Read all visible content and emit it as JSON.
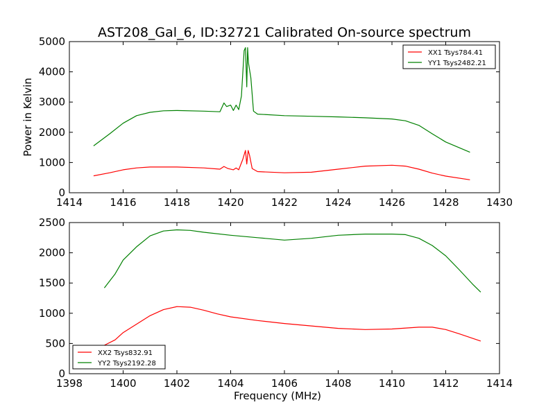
{
  "figure": {
    "title": "AST208_Gal_6, ID:32721 Calibrated On-source spectrum"
  },
  "chart_data": [
    {
      "type": "line",
      "ylabel": "Power in Kelvin",
      "xlabel": "",
      "xlim": [
        1414,
        1430
      ],
      "ylim": [
        0,
        5000
      ],
      "xticks": [
        "1414",
        "1416",
        "1418",
        "1420",
        "1422",
        "1424",
        "1426",
        "1428",
        "1430"
      ],
      "yticks": [
        "0",
        "1000",
        "2000",
        "3000",
        "4000",
        "5000"
      ],
      "legend_position": "top-right",
      "grid": false,
      "series": [
        {
          "name": "XX1 Tsys784.41",
          "color": "#ff0000",
          "x": [
            1414.9,
            1415.5,
            1416.0,
            1416.5,
            1417.0,
            1418.0,
            1419.0,
            1419.6,
            1419.75,
            1419.9,
            1420.1,
            1420.2,
            1420.3,
            1420.45,
            1420.55,
            1420.6,
            1420.65,
            1420.7,
            1420.8,
            1421.0,
            1422.0,
            1423.0,
            1424.0,
            1425.0,
            1426.0,
            1426.5,
            1427.0,
            1427.5,
            1428.0,
            1428.9
          ],
          "y": [
            560,
            660,
            760,
            820,
            850,
            850,
            820,
            780,
            870,
            800,
            760,
            820,
            760,
            1100,
            1400,
            950,
            1400,
            1250,
            800,
            700,
            660,
            680,
            780,
            880,
            910,
            880,
            780,
            650,
            550,
            430
          ]
        },
        {
          "name": "YY1 Tsys2482.21",
          "color": "#008000",
          "x": [
            1414.9,
            1415.5,
            1416.0,
            1416.5,
            1417.0,
            1417.5,
            1418.0,
            1419.0,
            1419.6,
            1419.75,
            1419.85,
            1420.0,
            1420.1,
            1420.2,
            1420.3,
            1420.4,
            1420.5,
            1420.55,
            1420.6,
            1420.63,
            1420.66,
            1420.75,
            1420.85,
            1421.0,
            1422.0,
            1423.0,
            1424.0,
            1425.0,
            1426.0,
            1426.5,
            1427.0,
            1427.5,
            1428.0,
            1428.9
          ],
          "y": [
            1550,
            1950,
            2300,
            2550,
            2660,
            2710,
            2720,
            2700,
            2680,
            2970,
            2850,
            2900,
            2720,
            2900,
            2750,
            3200,
            4700,
            4800,
            3500,
            4800,
            4300,
            3800,
            2700,
            2600,
            2550,
            2530,
            2510,
            2480,
            2440,
            2380,
            2230,
            1950,
            1680,
            1340
          ]
        }
      ]
    },
    {
      "type": "line",
      "ylabel": "",
      "xlabel": "Frequency (MHz)",
      "xlim": [
        1398,
        1414
      ],
      "ylim": [
        0,
        2500
      ],
      "xticks": [
        "1398",
        "1400",
        "1402",
        "1404",
        "1406",
        "1408",
        "1410",
        "1412",
        "1414"
      ],
      "yticks": [
        "0",
        "500",
        "1000",
        "1500",
        "2000",
        "2500"
      ],
      "legend_position": "bottom-left",
      "grid": false,
      "series": [
        {
          "name": "XX2 Tsys832.91",
          "color": "#ff0000",
          "x": [
            1399.3,
            1399.7,
            1400.0,
            1400.5,
            1401.0,
            1401.5,
            1402.0,
            1402.5,
            1403.0,
            1403.5,
            1404.0,
            1405.0,
            1406.0,
            1407.0,
            1408.0,
            1409.0,
            1410.0,
            1411.0,
            1411.5,
            1412.0,
            1412.5,
            1413.3
          ],
          "y": [
            470,
            560,
            680,
            820,
            960,
            1060,
            1110,
            1100,
            1050,
            990,
            940,
            880,
            830,
            790,
            750,
            730,
            740,
            770,
            770,
            730,
            660,
            540
          ]
        },
        {
          "name": "YY2 Tsys2192.28",
          "color": "#008000",
          "x": [
            1399.3,
            1399.7,
            1400.0,
            1400.5,
            1401.0,
            1401.5,
            1402.0,
            1402.5,
            1403.0,
            1404.0,
            1405.0,
            1406.0,
            1407.0,
            1408.0,
            1409.0,
            1410.0,
            1410.5,
            1411.0,
            1411.5,
            1412.0,
            1412.5,
            1413.0,
            1413.3
          ],
          "y": [
            1420,
            1650,
            1880,
            2100,
            2280,
            2360,
            2380,
            2370,
            2340,
            2290,
            2250,
            2210,
            2240,
            2290,
            2310,
            2310,
            2300,
            2240,
            2120,
            1950,
            1720,
            1480,
            1350
          ]
        }
      ]
    }
  ]
}
